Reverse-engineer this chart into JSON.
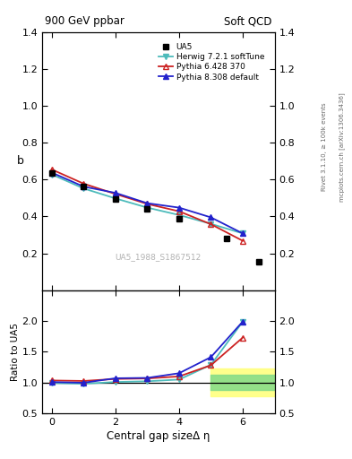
{
  "title_left": "900 GeV ppbar",
  "title_right": "Soft QCD",
  "ylabel_main": "b",
  "ylabel_ratio": "Ratio to UA5",
  "xlabel": "Central gap sizeΔ η",
  "right_label_top": "Rivet 3.1.10, ≥ 100k events",
  "right_label_bottom": "mcplots.cern.ch [arXiv:1306.3436]",
  "watermark": "UA5_1988_S1867512",
  "ua5_x": [
    0,
    1,
    2,
    3,
    4,
    5.5,
    6.5
  ],
  "ua5_y": [
    0.635,
    0.565,
    0.495,
    0.44,
    0.39,
    0.28,
    0.155
  ],
  "herwig_x": [
    0,
    1,
    2,
    3,
    4,
    5,
    6
  ],
  "herwig_y": [
    0.628,
    0.552,
    0.498,
    0.448,
    0.408,
    0.36,
    0.308
  ],
  "pythia6_x": [
    0,
    1,
    2,
    3,
    4,
    5,
    6
  ],
  "pythia6_y": [
    0.655,
    0.578,
    0.522,
    0.468,
    0.428,
    0.358,
    0.268
  ],
  "pythia8_x": [
    0,
    1,
    2,
    3,
    4,
    5,
    6
  ],
  "pythia8_y": [
    0.638,
    0.562,
    0.528,
    0.472,
    0.448,
    0.395,
    0.308
  ],
  "herwig_ratio_x": [
    0,
    1,
    2,
    3,
    4,
    5,
    6
  ],
  "herwig_ratio_y": [
    0.99,
    0.978,
    1.006,
    1.018,
    1.046,
    1.286,
    1.987
  ],
  "pythia6_ratio_x": [
    0,
    1,
    2,
    3,
    4,
    5,
    6
  ],
  "pythia6_ratio_y": [
    1.031,
    1.023,
    1.056,
    1.064,
    1.097,
    1.279,
    1.729
  ],
  "pythia8_ratio_x": [
    0,
    1,
    2,
    3,
    4,
    5,
    6
  ],
  "pythia8_ratio_y": [
    1.005,
    0.994,
    1.067,
    1.073,
    1.149,
    1.411,
    1.99
  ],
  "herwig_color": "#4DBBBB",
  "pythia6_color": "#CC2222",
  "pythia8_color": "#2222CC",
  "ua5_color": "#000000",
  "main_ylim": [
    0.0,
    1.4
  ],
  "ratio_ylim": [
    0.5,
    2.5
  ],
  "xlim": [
    -0.3,
    7.0
  ],
  "legend_labels": [
    "UA5",
    "Herwig 7.2.1 softTune",
    "Pythia 6.428 370",
    "Pythia 8.308 default"
  ],
  "main_yticks": [
    0.2,
    0.4,
    0.6,
    0.8,
    1.0,
    1.2,
    1.4
  ],
  "ratio_yticks": [
    0.5,
    1.0,
    1.5,
    2.0
  ],
  "xticks": [
    0,
    2,
    4,
    6
  ]
}
